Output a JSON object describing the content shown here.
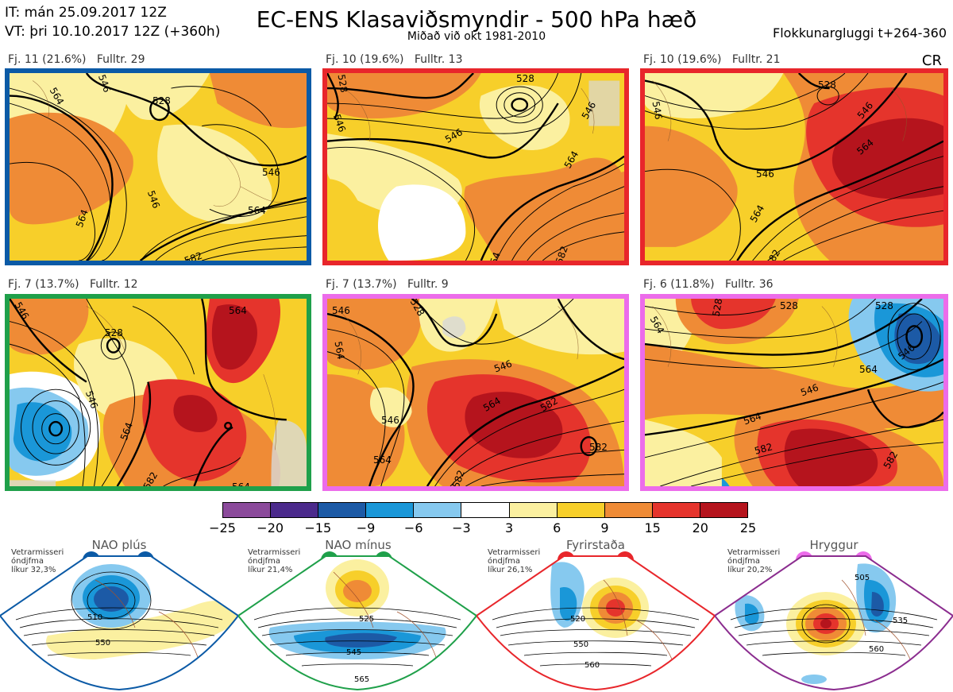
{
  "header": {
    "it_line": "IT: mán 25.09.2017 12Z",
    "vt_line": "VT: þri 10.10.2017 12Z  (+360h)",
    "title": "EC-ENS Klasaviðsmyndir - 500 hPa hæð",
    "subtitle": "Miðað við okt 1981-2010",
    "window": "Flokkunargluggi t+264-360",
    "cr": "CR"
  },
  "colors": {
    "blue_frame": "#0b5aa6",
    "red_frame": "#e8262b",
    "green_frame": "#1fa04a",
    "pink_frame": "#ec6cea",
    "purple_frame": "#8b2d8f"
  },
  "panels": [
    {
      "label": "Fj. 11 (21.6%)   Fulltr. 29",
      "contours": [
        "564",
        "528",
        "546",
        "546",
        "564",
        "564",
        "582",
        "546"
      ],
      "frame": "blue_frame"
    },
    {
      "label": "Fj. 10 (19.6%)   Fulltr. 13",
      "contours": [
        "528",
        "528",
        "546",
        "546",
        "564",
        "582",
        "54",
        "546"
      ],
      "frame": "red_frame"
    },
    {
      "label": "Fj. 10 (19.6%)   Fulltr. 21",
      "contours": [
        "528",
        "546",
        "546",
        "564",
        "564",
        "582",
        "546"
      ],
      "frame": "red_frame"
    },
    {
      "label": "Fj. 7 (13.7%)   Fulltr. 12",
      "contours": [
        "546",
        "528",
        "564",
        "546",
        "564",
        "582",
        "564"
      ],
      "frame": "green_frame"
    },
    {
      "label": "Fj. 7 (13.7%)   Fulltr. 9",
      "contours": [
        "546",
        "528",
        "564",
        "546",
        "546",
        "564",
        "564",
        "582",
        "582",
        "582"
      ],
      "frame": "pink_frame"
    },
    {
      "label": "Fj. 6 (11.8%)   Fulltr. 36",
      "contours": [
        "564",
        "528",
        "528",
        "528",
        "546",
        "564",
        "546",
        "564",
        "582",
        "582"
      ],
      "frame": "pink_frame"
    }
  ],
  "colorbar": {
    "ticks": [
      "−25",
      "−20",
      "−15",
      "−9",
      "−6",
      "−3",
      "3",
      "6",
      "9",
      "15",
      "20",
      "25"
    ],
    "colors": [
      "#8b4a9b",
      "#4b2a8c",
      "#1c5aa6",
      "#1a97d8",
      "#86c9ef",
      "#ffffff",
      "#fbf0a0",
      "#f7cf2a",
      "#ef8b36",
      "#e5342c",
      "#b5141d"
    ]
  },
  "regimes": [
    {
      "name": "NAO plús",
      "side": "Vetrarmisseri\nóndjfma\nlíkur 32,3%",
      "contours": [
        "510",
        "550"
      ],
      "frame": "blue_frame",
      "dot": "#0b5aa6"
    },
    {
      "name": "NAO mínus",
      "side": "Vetrarmisseri\nóndjfma\nlíkur 21,4%",
      "contours": [
        "525",
        "545",
        "565"
      ],
      "frame": "green_frame",
      "dot": "#1fa04a"
    },
    {
      "name": "Fyrirstaða",
      "side": "Vetrarmisseri\nóndjfma\nlíkur 26,1%",
      "contours": [
        "520",
        "550",
        "560"
      ],
      "frame": "red_frame",
      "dot": "#e8262b"
    },
    {
      "name": "Hryggur",
      "side": "Vetrarmisseri\nóndjfma\nlíkur 20,2%",
      "contours": [
        "505",
        "535",
        "560"
      ],
      "frame": "purple_frame",
      "dot": "#ec6cea"
    }
  ]
}
